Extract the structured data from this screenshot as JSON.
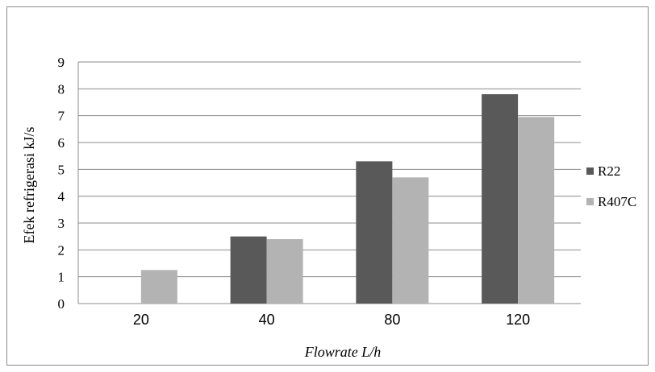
{
  "chart_data": {
    "type": "bar",
    "categories": [
      "20",
      "40",
      "80",
      "120"
    ],
    "series": [
      {
        "name": "R22",
        "color": "#595959",
        "values": [
          0,
          2.5,
          5.3,
          7.8
        ]
      },
      {
        "name": "R407C",
        "color": "#b3b3b3",
        "values": [
          1.25,
          2.4,
          4.7,
          6.95
        ]
      }
    ],
    "title": "",
    "xlabel": "Flowrate L/h",
    "ylabel": "Efek refrigerasi kJ/s",
    "ylim": [
      0,
      9
    ],
    "yticks": [
      "0",
      "1",
      "2",
      "3",
      "4",
      "5",
      "6",
      "7",
      "8",
      "9"
    ],
    "grid": true,
    "legend_position": "right"
  }
}
